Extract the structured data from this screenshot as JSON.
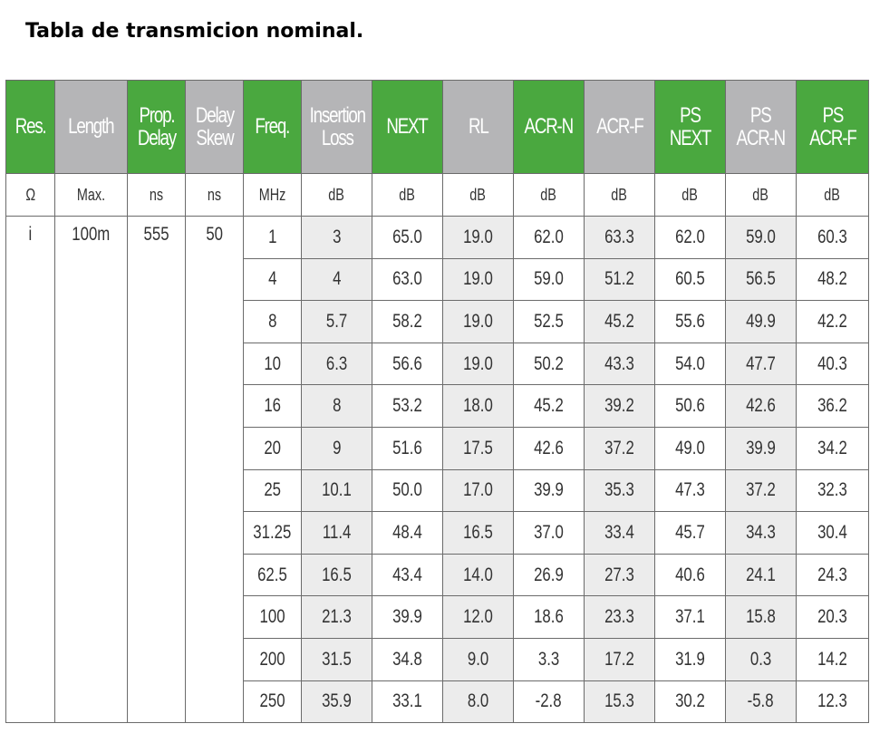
{
  "title": "Tabla de transmicion nominal.",
  "headers": [
    {
      "label": "Res.",
      "color": "green"
    },
    {
      "label": "Length",
      "color": "gray"
    },
    {
      "label": "Prop.\nDelay",
      "color": "green"
    },
    {
      "label": "Delay\nSkew",
      "color": "gray"
    },
    {
      "label": "Freq.",
      "color": "green"
    },
    {
      "label": "Insertion\nLoss",
      "color": "gray"
    },
    {
      "label": "NEXT",
      "color": "green"
    },
    {
      "label": "RL",
      "color": "gray"
    },
    {
      "label": "ACR-N",
      "color": "green"
    },
    {
      "label": "ACR-F",
      "color": "gray"
    },
    {
      "label": "PS NEXT",
      "color": "green"
    },
    {
      "label": "PS\nACR-N",
      "color": "gray"
    },
    {
      "label": "PS\nACR-F",
      "color": "green"
    }
  ],
  "units": [
    "Ω",
    "Max.",
    "ns",
    "ns",
    "MHz",
    "dB",
    "dB",
    "dB",
    "dB",
    "dB",
    "dB",
    "dB",
    "dB"
  ],
  "fixed": {
    "res": "i",
    "length": "100m",
    "prop_delay": "555",
    "delay_skew": "50"
  },
  "rows": [
    [
      "1",
      "3",
      "65.0",
      "19.0",
      "62.0",
      "63.3",
      "62.0",
      "59.0",
      "60.3"
    ],
    [
      "4",
      "4",
      "63.0",
      "19.0",
      "59.0",
      "51.2",
      "60.5",
      "56.5",
      "48.2"
    ],
    [
      "8",
      "5.7",
      "58.2",
      "19.0",
      "52.5",
      "45.2",
      "55.6",
      "49.9",
      "42.2"
    ],
    [
      "10",
      "6.3",
      "56.6",
      "19.0",
      "50.2",
      "43.3",
      "54.0",
      "47.7",
      "40.3"
    ],
    [
      "16",
      "8",
      "53.2",
      "18.0",
      "45.2",
      "39.2",
      "50.6",
      "42.6",
      "36.2"
    ],
    [
      "20",
      "9",
      "51.6",
      "17.5",
      "42.6",
      "37.2",
      "49.0",
      "39.9",
      "34.2"
    ],
    [
      "25",
      "10.1",
      "50.0",
      "17.0",
      "39.9",
      "35.3",
      "47.3",
      "37.2",
      "32.3"
    ],
    [
      "31.25",
      "11.4",
      "48.4",
      "16.5",
      "37.0",
      "33.4",
      "45.7",
      "34.3",
      "30.4"
    ],
    [
      "62.5",
      "16.5",
      "43.4",
      "14.0",
      "26.9",
      "27.3",
      "40.6",
      "24.1",
      "24.3"
    ],
    [
      "100",
      "21.3",
      "39.9",
      "12.0",
      "18.6",
      "23.3",
      "37.1",
      "15.8",
      "20.3"
    ],
    [
      "200",
      "31.5",
      "34.8",
      "9.0",
      "3.3",
      "17.2",
      "31.9",
      "0.3",
      "14.2"
    ],
    [
      "250",
      "35.9",
      "33.1",
      "8.0",
      "-2.8",
      "15.3",
      "30.2",
      "-5.8",
      "12.3"
    ]
  ],
  "colors": {
    "green": "#4aa83f",
    "gray": "#b5b5b7",
    "cell_gray": "#ececec",
    "border": "#6b6b6b"
  }
}
